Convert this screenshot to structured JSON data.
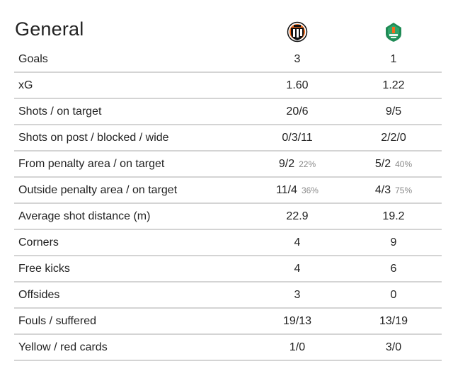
{
  "section": {
    "title": "General"
  },
  "teams": {
    "home": {
      "logo_icon": "home-team-crest-icon",
      "colors": [
        "#111111",
        "#ffffff",
        "#f26b1d"
      ]
    },
    "away": {
      "logo_icon": "away-team-crest-icon",
      "colors": [
        "#1f8a55",
        "#e8f5ee",
        "#f26b1d"
      ]
    }
  },
  "stats": [
    {
      "label": "Goals",
      "home": "3",
      "home_pct": "",
      "away": "1",
      "away_pct": ""
    },
    {
      "label": "xG",
      "home": "1.60",
      "home_pct": "",
      "away": "1.22",
      "away_pct": ""
    },
    {
      "label": "Shots / on target",
      "home": "20/6",
      "home_pct": "",
      "away": "9/5",
      "away_pct": ""
    },
    {
      "label": "Shots on post / blocked / wide",
      "home": "0/3/11",
      "home_pct": "",
      "away": "2/2/0",
      "away_pct": ""
    },
    {
      "label": "From penalty area / on target",
      "home": "9/2",
      "home_pct": "22%",
      "away": "5/2",
      "away_pct": "40%"
    },
    {
      "label": "Outside penalty area / on target",
      "home": "11/4",
      "home_pct": "36%",
      "away": "4/3",
      "away_pct": "75%"
    },
    {
      "label": "Average shot distance (m)",
      "home": "22.9",
      "home_pct": "",
      "away": "19.2",
      "away_pct": ""
    },
    {
      "label": "Corners",
      "home": "4",
      "home_pct": "",
      "away": "9",
      "away_pct": ""
    },
    {
      "label": "Free kicks",
      "home": "4",
      "home_pct": "",
      "away": "6",
      "away_pct": ""
    },
    {
      "label": "Offsides",
      "home": "3",
      "home_pct": "",
      "away": "0",
      "away_pct": ""
    },
    {
      "label": "Fouls / suffered",
      "home": "19/13",
      "home_pct": "",
      "away": "13/19",
      "away_pct": ""
    },
    {
      "label": "Yellow / red cards",
      "home": "1/0",
      "home_pct": "",
      "away": "3/0",
      "away_pct": ""
    }
  ]
}
